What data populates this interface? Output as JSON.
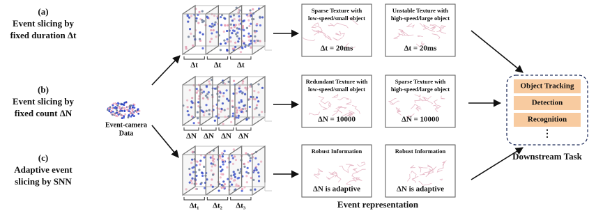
{
  "rows": [
    {
      "id": "(a)",
      "label": [
        "Event slicing by",
        "fixed duration Δt"
      ],
      "slices": [
        "Δt",
        "Δt",
        "Δt"
      ],
      "panels": [
        {
          "title": [
            "Sparse Texture with",
            "low-speed/small object"
          ],
          "caption": "Δt = 20ms"
        },
        {
          "title": [
            "Unstable Texture with",
            "high-speed/large object"
          ],
          "caption": "Δt = 20ms"
        }
      ]
    },
    {
      "id": "(b)",
      "label": [
        "Event slicing by",
        "fixed count ΔN"
      ],
      "slices": [
        "ΔN",
        "ΔN",
        "ΔN",
        "ΔN"
      ],
      "panels": [
        {
          "title": [
            "Redundant Texture with",
            "low-speed/small object"
          ],
          "caption": "ΔN = 10000"
        },
        {
          "title": [
            "Sparse Texture with",
            "high-speed/large object"
          ],
          "caption": "ΔN = 10000"
        }
      ]
    },
    {
      "id": "(c)",
      "label": [
        "Adaptive event",
        "slicing by SNN"
      ],
      "slices": [
        "Δt₁",
        "Δt₂",
        "Δt₃"
      ],
      "panels": [
        {
          "title": [
            "Robust Information"
          ],
          "caption": "ΔN is adaptive"
        },
        {
          "title": [
            "Robust Information"
          ],
          "caption": "ΔN is adaptive"
        }
      ]
    }
  ],
  "source": [
    "Event-camera",
    "Data"
  ],
  "representation_label": "Event representation",
  "downstream": {
    "tasks": [
      "Object Tracking",
      "Detection",
      "Recognition"
    ],
    "more": "⋮",
    "title": "Downstream Task"
  }
}
